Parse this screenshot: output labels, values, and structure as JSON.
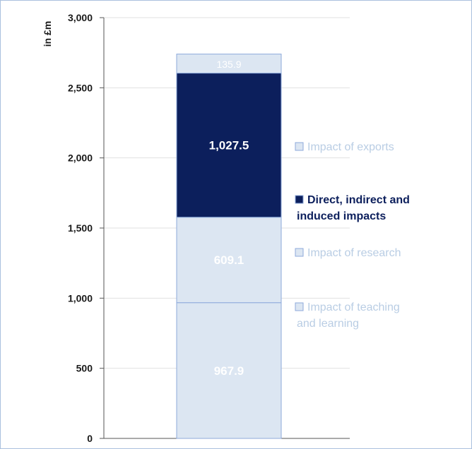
{
  "chart_data": {
    "type": "bar",
    "stacked": true,
    "categories": [
      ""
    ],
    "ylabel": "in £m",
    "ylim": [
      0,
      3000
    ],
    "yticks": [
      0,
      500,
      1000,
      1500,
      2000,
      2500,
      3000
    ],
    "ytick_labels": [
      "0",
      "500",
      "1,000",
      "1,500",
      "2,000",
      "2,500",
      "3,000"
    ],
    "grid": true,
    "legend_placement": "right",
    "series": [
      {
        "name": "Impact of teaching and learning",
        "legend_lines": [
          "Impact of teaching",
          "and learning"
        ],
        "values": [
          967.9
        ],
        "label": "967.9",
        "color": "#dce6f2",
        "text_color": "#b9cde4",
        "label_style": "bold"
      },
      {
        "name": "Impact of research",
        "legend_lines": [
          "Impact of research"
        ],
        "values": [
          609.1
        ],
        "label": "609.1",
        "color": "#dce6f2",
        "text_color": "#b9cde4",
        "label_style": "bold"
      },
      {
        "name": "Direct, indirect and induced impacts",
        "legend_lines": [
          "Direct, indirect and",
          "induced impacts"
        ],
        "values": [
          1027.5
        ],
        "label": "1,027.5",
        "color": "#0c1f5c",
        "text_color": "#0c1f5c",
        "label_style": "bold"
      },
      {
        "name": "Impact of exports",
        "legend_lines": [
          "Impact of exports"
        ],
        "values": [
          135.9
        ],
        "label": "135.9",
        "color": "#dce6f2",
        "text_color": "#b9cde4",
        "label_style": "small"
      }
    ],
    "colors": {
      "border": "#8eaadb",
      "grid": "#e1e1e1",
      "axis": "#555555"
    }
  }
}
